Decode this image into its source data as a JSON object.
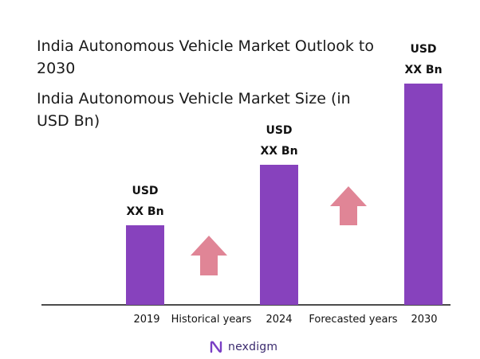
{
  "title": "India Autonomous Vehicle Market Outlook to 2030",
  "subtitle": "India Autonomous Vehicle Market Size (in USD Bn)",
  "chart_data": {
    "type": "bar",
    "categories": [
      "2019",
      "2024",
      "2030"
    ],
    "values": [
      100,
      176,
      278
    ],
    "value_labels": [
      [
        "USD",
        "XX Bn"
      ],
      [
        "USD",
        "XX Bn"
      ],
      [
        "USD",
        "XX Bn"
      ]
    ],
    "period_labels": [
      "Historical years",
      "Forecasted years"
    ],
    "bar_color": "#8742bd",
    "arrow_color": "#e08596",
    "ylim": [
      0,
      290
    ],
    "grid": false,
    "legend": "none"
  },
  "brand": {
    "name": "nexdigm",
    "color": "#3a2a6e",
    "icon": "nexdigm-logo-icon"
  }
}
